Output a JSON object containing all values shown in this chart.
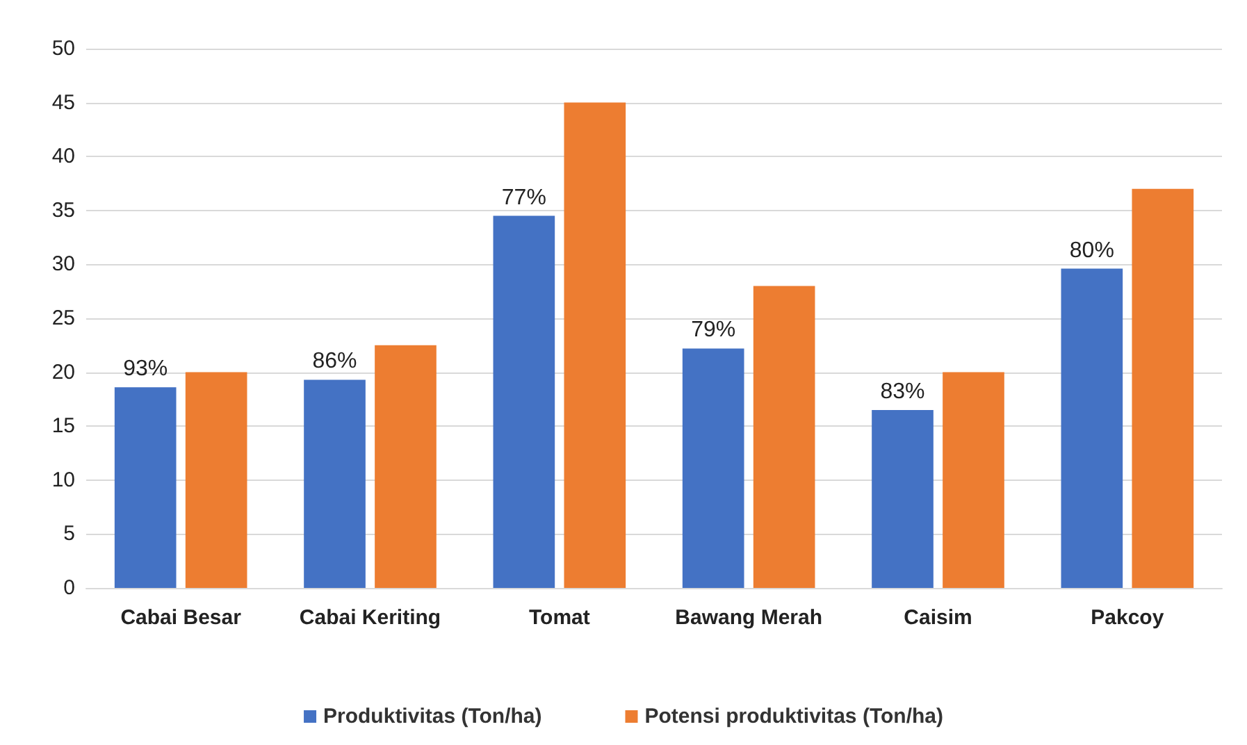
{
  "chart_data": {
    "type": "bar",
    "categories": [
      "Cabai Besar",
      "Cabai Keriting",
      "Tomat",
      "Bawang Merah",
      "Caisim",
      "Pakcoy"
    ],
    "series": [
      {
        "name": "Produktivitas (Ton/ha)",
        "color": "#4472c4",
        "values": [
          18.6,
          19.3,
          34.5,
          22.2,
          16.5,
          29.6
        ]
      },
      {
        "name": "Potensi produktivitas (Ton/ha)",
        "color": "#ed7d31",
        "values": [
          20,
          22.5,
          45,
          28,
          20,
          37
        ]
      }
    ],
    "annotations": [
      {
        "text": "93%",
        "x": "Cabai Besar",
        "y": 18.6
      },
      {
        "text": "86%",
        "x": "Cabai Keriting",
        "y": 19.3
      },
      {
        "text": "77%",
        "x": "Tomat",
        "y": 34.5
      },
      {
        "text": "79%",
        "x": "Bawang Merah",
        "y": 22.2
      },
      {
        "text": "83%",
        "x": "Caisim",
        "y": 16.5
      },
      {
        "text": "80%",
        "x": "Pakcoy",
        "y": 29.6
      }
    ],
    "ylim": [
      0,
      50
    ],
    "yticks": [
      0,
      5,
      10,
      15,
      20,
      25,
      30,
      35,
      40,
      45,
      50
    ],
    "grid": "y",
    "legend": "bottom"
  }
}
